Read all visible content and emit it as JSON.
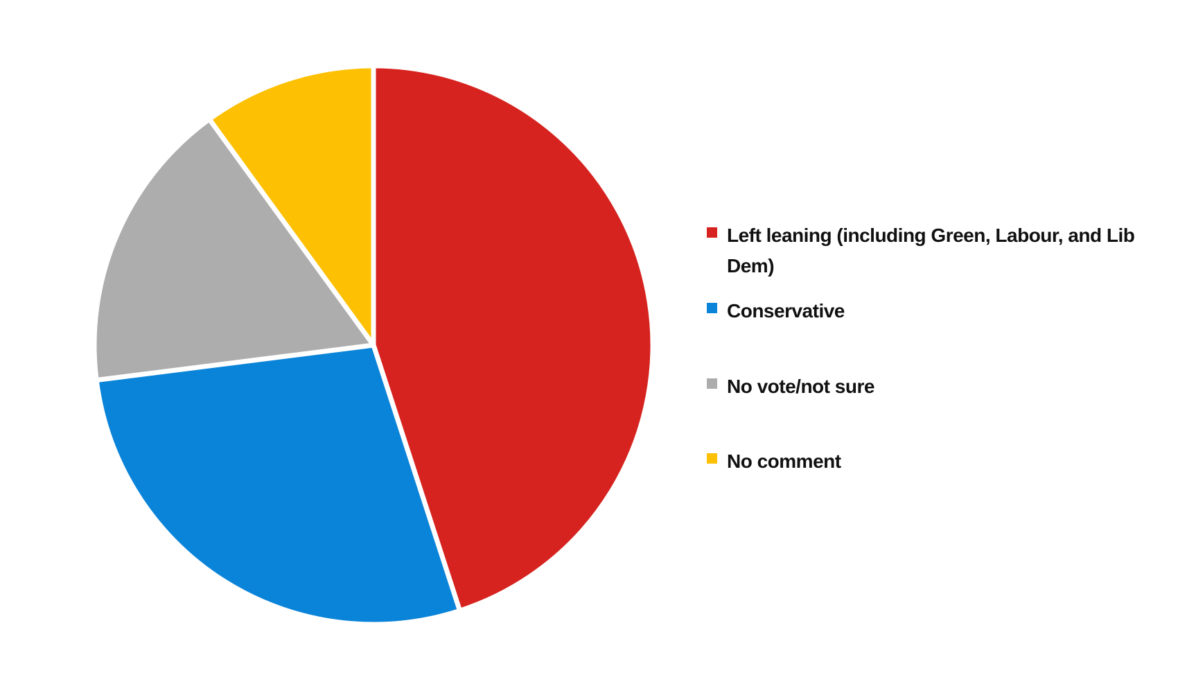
{
  "chart_data": {
    "type": "pie",
    "categories": [
      "Left leaning (including Green, Labour, and Lib Dem)",
      "Conservative",
      "No vote/not sure",
      "No comment"
    ],
    "values": [
      45,
      28,
      17,
      10
    ],
    "colors": [
      "#d7231f",
      "#0a84d9",
      "#adadad",
      "#fdc002"
    ]
  }
}
